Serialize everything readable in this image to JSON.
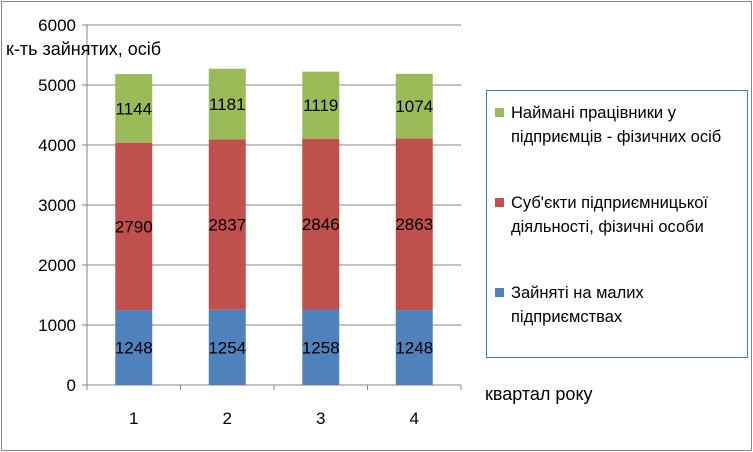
{
  "chart_data": {
    "type": "bar",
    "stacked": true,
    "categories": [
      "1",
      "2",
      "3",
      "4"
    ],
    "series": [
      {
        "name": "Зайняті на малих підприємствах",
        "values": [
          1248,
          1254,
          1258,
          1248
        ],
        "color": "#4f81bd"
      },
      {
        "name": "Суб'єкти підприємницької діяльності, фізичні особи",
        "values": [
          2790,
          2837,
          2846,
          2863
        ],
        "color": "#c0504d"
      },
      {
        "name": "Наймані працівники у підприємців - фізичних осіб",
        "values": [
          1144,
          1181,
          1119,
          1074
        ],
        "color": "#9bbb59"
      }
    ],
    "ylabel": "к-ть зайнятих, осіб",
    "xlabel": "квартал року",
    "ylim": [
      0,
      6000
    ],
    "yticks": [
      0,
      1000,
      2000,
      3000,
      4000,
      5000,
      6000
    ],
    "grid": true,
    "legend_position": "right"
  },
  "legend": {
    "items": [
      {
        "label": "Наймані працівники у підприємців - фізичних осіб",
        "color": "#9bbb59"
      },
      {
        "label": "Суб'єкти підприємницької діяльності, фізичні особи",
        "color": "#c0504d"
      },
      {
        "label": "Зайняті на малих підприємствах",
        "color": "#4f81bd"
      }
    ]
  }
}
